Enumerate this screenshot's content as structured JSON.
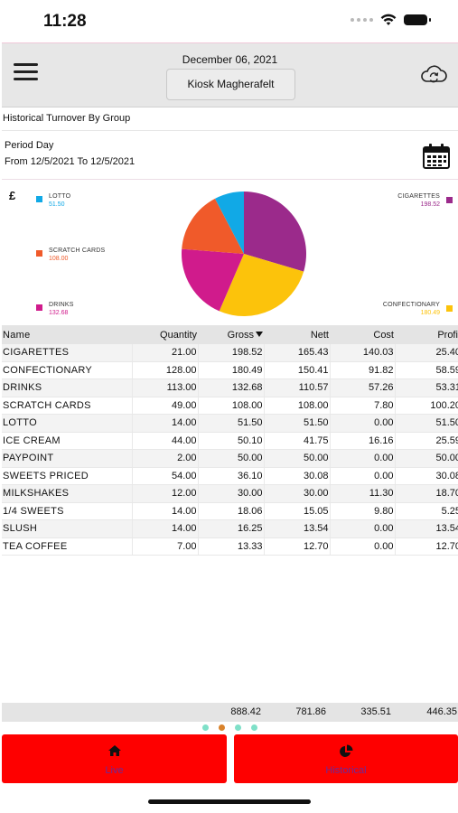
{
  "status_bar": {
    "time": "11:28"
  },
  "header": {
    "date": "December 06, 2021",
    "store": "Kiosk Magherafelt"
  },
  "section_title": "Historical Turnover By Group",
  "period": {
    "label": "Period Day",
    "range": "From 12/5/2021 To 12/5/2021"
  },
  "chart_data": {
    "type": "pie",
    "currency_symbol": "£",
    "slices": [
      {
        "label": "CIGARETTES",
        "value": "198.52",
        "color": "#9b2a8b"
      },
      {
        "label": "CONFECTIONARY",
        "value": "180.49",
        "color": "#fcc30b"
      },
      {
        "label": "DRINKS",
        "value": "132.68",
        "color": "#d01b8c"
      },
      {
        "label": "SCRATCH CARDS",
        "value": "108.00",
        "color": "#f05a2a"
      },
      {
        "label": "LOTTO",
        "value": "51.50",
        "color": "#11a9e6"
      }
    ]
  },
  "table": {
    "columns": [
      "Name",
      "Quantity",
      "Gross",
      "Nett",
      "Cost",
      "Profit"
    ],
    "rows": [
      [
        "CIGARETTES",
        "21.00",
        "198.52",
        "165.43",
        "140.03",
        "25.40"
      ],
      [
        "CONFECTIONARY",
        "128.00",
        "180.49",
        "150.41",
        "91.82",
        "58.59"
      ],
      [
        "DRINKS",
        "113.00",
        "132.68",
        "110.57",
        "57.26",
        "53.31"
      ],
      [
        "SCRATCH CARDS",
        "49.00",
        "108.00",
        "108.00",
        "7.80",
        "100.20"
      ],
      [
        "LOTTO",
        "14.00",
        "51.50",
        "51.50",
        "0.00",
        "51.50"
      ],
      [
        "ICE CREAM",
        "44.00",
        "50.10",
        "41.75",
        "16.16",
        "25.59"
      ],
      [
        "PAYPOINT",
        "2.00",
        "50.00",
        "50.00",
        "0.00",
        "50.00"
      ],
      [
        "SWEETS PRICED",
        "54.00",
        "36.10",
        "30.08",
        "0.00",
        "30.08"
      ],
      [
        "MILKSHAKES",
        "12.00",
        "30.00",
        "30.00",
        "11.30",
        "18.70"
      ],
      [
        "1/4 SWEETS",
        "14.00",
        "18.06",
        "15.05",
        "9.80",
        "5.25"
      ],
      [
        "SLUSH",
        "14.00",
        "16.25",
        "13.54",
        "0.00",
        "13.54"
      ],
      [
        "TEA COFFEE",
        "7.00",
        "13.33",
        "12.70",
        "0.00",
        "12.70"
      ]
    ],
    "totals": {
      "gross": "888.42",
      "nett": "781.86",
      "cost": "335.51",
      "profit": "446.35"
    }
  },
  "tabs": {
    "live": "Live",
    "historical": "Historical"
  },
  "colors": {
    "tab_bg": "#fe0000",
    "tab_label": "#6a2a9a",
    "dot_active": "#d9822b",
    "dot_inactive": "#7fe0c8"
  }
}
